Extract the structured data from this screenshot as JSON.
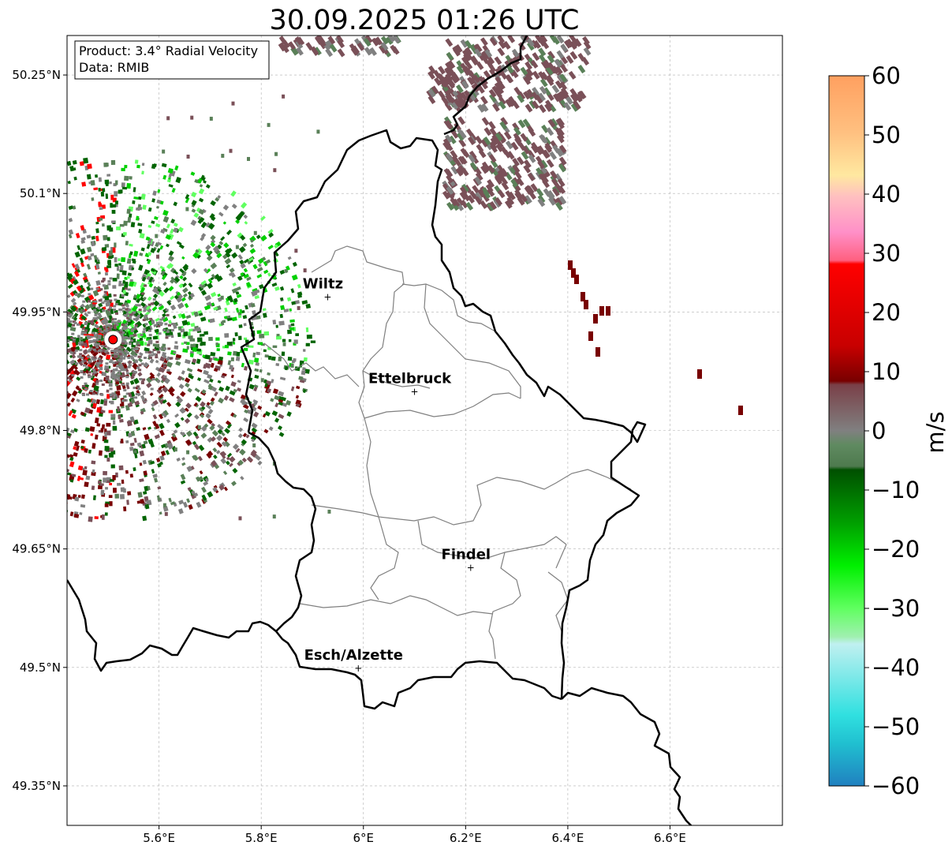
{
  "title": "30.09.2025 01:26 UTC",
  "info_box": {
    "product": "Product: 3.4° Radial Velocity",
    "data": "Data: RMIB"
  },
  "map": {
    "lon_range": [
      5.42,
      6.82
    ],
    "lat_range": [
      49.3,
      50.3
    ],
    "lon_ticks": [
      {
        "value": 5.6,
        "label": "5.6°E"
      },
      {
        "value": 5.8,
        "label": "5.8°E"
      },
      {
        "value": 6.0,
        "label": "6°E"
      },
      {
        "value": 6.2,
        "label": "6.2°E"
      },
      {
        "value": 6.4,
        "label": "6.4°E"
      },
      {
        "value": 6.6,
        "label": "6.6°E"
      }
    ],
    "lat_ticks": [
      {
        "value": 50.25,
        "label": "50.25°N"
      },
      {
        "value": 50.1,
        "label": "50.1°N"
      },
      {
        "value": 49.95,
        "label": "49.95°N"
      },
      {
        "value": 49.8,
        "label": "49.8°N"
      },
      {
        "value": 49.65,
        "label": "49.65°N"
      },
      {
        "value": 49.5,
        "label": "49.5°N"
      },
      {
        "value": 49.35,
        "label": "49.35°N"
      }
    ],
    "grid": true,
    "radar_site": {
      "lon": 5.51,
      "lat": 49.915,
      "color": "#ff0000"
    },
    "cities": [
      {
        "name": "Wiltz",
        "lon": 5.93,
        "lat": 49.97
      },
      {
        "name": "Ettelbruck",
        "lon": 6.1,
        "lat": 49.85
      },
      {
        "name": "Findel",
        "lon": 6.21,
        "lat": 49.627
      },
      {
        "name": "Esch/Alzette",
        "lon": 5.99,
        "lat": 49.5
      }
    ]
  },
  "colorbar": {
    "label": "m/s",
    "min": -60,
    "max": 60,
    "ticks": [
      {
        "value": 60,
        "label": "60"
      },
      {
        "value": 50,
        "label": "50"
      },
      {
        "value": 40,
        "label": "40"
      },
      {
        "value": 30,
        "label": "30"
      },
      {
        "value": 20,
        "label": "20"
      },
      {
        "value": 10,
        "label": "10"
      },
      {
        "value": 0,
        "label": "0"
      },
      {
        "value": -10,
        "label": "−10"
      },
      {
        "value": -20,
        "label": "−20"
      },
      {
        "value": -30,
        "label": "−30"
      },
      {
        "value": -40,
        "label": "−40"
      },
      {
        "value": -50,
        "label": "−50"
      },
      {
        "value": -60,
        "label": "−60"
      }
    ],
    "colors": {
      "top": "#ffa060",
      "orange": "#ffc080",
      "yellow": "#ffe8a0",
      "pink": "#ff90c8",
      "rose": "#ff6080",
      "red": "#ff0000",
      "darkred": "#780000",
      "brown": "#7a5058",
      "grey": "#808080",
      "greengrey": "#5a8058",
      "darkgreen": "#006400",
      "green": "#00d000",
      "lightgreen": "#60ff60",
      "palegreen": "#a0f0b0",
      "paleblue": "#b0f0f0",
      "cyan": "#30e0e0",
      "blue": "#2080c0"
    }
  }
}
